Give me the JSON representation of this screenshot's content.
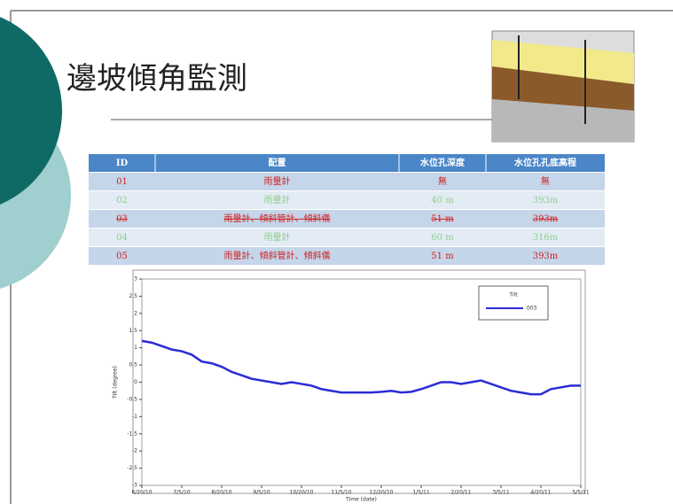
{
  "slide": {
    "title": "邊坡傾角監測",
    "table": {
      "header": [
        "ID",
        "配置",
        "水位孔深度",
        "水位孔孔底高程"
      ],
      "rows": [
        [
          "01",
          "雨量計",
          "無",
          "無"
        ],
        [
          "02",
          "雨量計",
          "40 m",
          "393m"
        ],
        [
          "03",
          "雨量計、傾斜管計、傾斜儀",
          "51 m",
          "393m"
        ],
        [
          "04",
          "雨量計",
          "60 m",
          "316m"
        ],
        [
          "05",
          "雨量計、傾斜管計、傾斜儀",
          "51 m",
          "393m"
        ]
      ]
    }
  },
  "chart_data": {
    "type": "line",
    "y_label": "Tilt (degree)",
    "x_label": "Time (date)",
    "legend_title": "Tilt",
    "categories": [
      "6/20/10",
      null,
      null,
      null,
      "7/5/10",
      null,
      null,
      null,
      "8/20/10",
      null,
      null,
      null,
      "9/5/10",
      null,
      null,
      null,
      "10/20/10",
      null,
      null,
      null,
      "11/5/10",
      null,
      null,
      null,
      "12/20/10",
      null,
      null,
      null,
      "1/5/11",
      null,
      null,
      null,
      "2/20/11",
      null,
      null,
      null,
      "3/5/11",
      null,
      null,
      null,
      "4/20/11",
      null,
      null,
      null,
      "5/5/11"
    ],
    "series": [
      {
        "name": "003",
        "color": "#2b2bd6",
        "values": [
          1.2,
          1.15,
          1.05,
          0.95,
          0.9,
          0.8,
          0.6,
          0.55,
          0.45,
          0.3,
          0.2,
          0.1,
          0.05,
          0,
          -0.05,
          0,
          -0.05,
          -0.1,
          -0.2,
          -0.25,
          -0.3,
          -0.3,
          -0.3,
          -0.3,
          -0.28,
          -0.25,
          -0.3,
          -0.28,
          -0.2,
          -0.1,
          0,
          0,
          -0.05,
          0,
          0.05,
          -0.05,
          -0.15,
          -0.25,
          -0.3,
          -0.35,
          -0.35,
          -0.2,
          -0.15,
          -0.1,
          -0.1
        ]
      }
    ],
    "ylim": [
      -3,
      3
    ],
    "yticks": [
      -3,
      -2.5,
      -2,
      -1.5,
      -1,
      -0.5,
      0,
      0.5,
      1,
      1.5,
      2,
      2.5,
      3
    ],
    "legend": "upper right"
  }
}
